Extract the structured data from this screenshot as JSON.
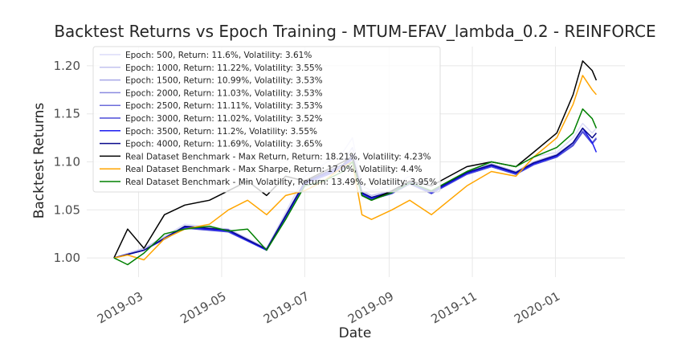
{
  "chart_data": {
    "type": "line",
    "title": "Backtest Returns vs Epoch Training - MTUM-EFAV_lambda_0.2 - REINFORCE",
    "xlabel": "Date",
    "ylabel": "Backtest Returns",
    "xlim": [
      "2019-01-22",
      "2020-02-21"
    ],
    "ylim": [
      0.98,
      1.22
    ],
    "x_ticks": [
      "2019-03",
      "2019-05",
      "2019-07",
      "2019-09",
      "2019-11",
      "2020-01"
    ],
    "y_ticks": [
      1.0,
      1.05,
      1.1,
      1.15,
      1.2
    ],
    "y_tick_labels": [
      "1.00",
      "1.05",
      "1.10",
      "1.15",
      "1.20"
    ],
    "grid": true,
    "legend_position": "upper-left",
    "series": [
      {
        "name": "Epoch: 500, Return: 11.6%, Volatility: 3.61%",
        "color": "#dcdcf8",
        "x": [
          "2019-02-11",
          "2019-03-05",
          "2019-04-04",
          "2019-05-06",
          "2019-06-03",
          "2019-07-01",
          "2019-07-29",
          "2019-08-05",
          "2019-08-12",
          "2019-08-19",
          "2019-09-03",
          "2019-09-16",
          "2019-10-02",
          "2019-10-15",
          "2019-10-28",
          "2019-11-15",
          "2019-12-03",
          "2019-12-16",
          "2020-01-02",
          "2020-01-14",
          "2020-01-21",
          "2020-01-28",
          "2020-01-31"
        ],
        "values": [
          1.0,
          1.01,
          1.035,
          1.03,
          1.01,
          1.085,
          1.11,
          1.125,
          1.075,
          1.07,
          1.075,
          1.085,
          1.075,
          1.085,
          1.095,
          1.1,
          1.095,
          1.105,
          1.11,
          1.125,
          1.14,
          1.13,
          1.135
        ]
      },
      {
        "name": "Epoch: 1000, Return: 11.22%, Volatility: 3.55%",
        "color": "#c3c3ef",
        "x": [
          "2019-02-11",
          "2019-03-05",
          "2019-04-04",
          "2019-05-06",
          "2019-06-03",
          "2019-07-01",
          "2019-07-29",
          "2019-08-05",
          "2019-08-12",
          "2019-08-19",
          "2019-09-03",
          "2019-09-16",
          "2019-10-02",
          "2019-10-15",
          "2019-10-28",
          "2019-11-15",
          "2019-12-03",
          "2019-12-16",
          "2020-01-02",
          "2020-01-14",
          "2020-01-21",
          "2020-01-28",
          "2020-01-31"
        ],
        "values": [
          1.0,
          1.01,
          1.033,
          1.03,
          1.01,
          1.08,
          1.1,
          1.115,
          1.07,
          1.065,
          1.07,
          1.08,
          1.07,
          1.08,
          1.09,
          1.098,
          1.09,
          1.1,
          1.108,
          1.12,
          1.135,
          1.125,
          1.13
        ]
      },
      {
        "name": "Epoch: 1500, Return: 10.99%, Volatility: 3.53%",
        "color": "#a6a6e6",
        "x": [
          "2019-02-11",
          "2019-03-05",
          "2019-04-04",
          "2019-05-06",
          "2019-06-03",
          "2019-07-01",
          "2019-07-29",
          "2019-08-05",
          "2019-08-12",
          "2019-08-19",
          "2019-09-03",
          "2019-09-16",
          "2019-10-02",
          "2019-10-15",
          "2019-10-28",
          "2019-11-15",
          "2019-12-03",
          "2019-12-16",
          "2020-01-02",
          "2020-01-14",
          "2020-01-21",
          "2020-01-28",
          "2020-01-31"
        ],
        "values": [
          1.0,
          1.008,
          1.032,
          1.028,
          1.008,
          1.078,
          1.095,
          1.105,
          1.068,
          1.062,
          1.068,
          1.078,
          1.068,
          1.078,
          1.088,
          1.096,
          1.088,
          1.098,
          1.106,
          1.118,
          1.132,
          1.12,
          1.125
        ]
      },
      {
        "name": "Epoch: 2000, Return: 11.03%, Volatility: 3.53%",
        "color": "#8a8adf",
        "x": [
          "2019-02-11",
          "2019-03-05",
          "2019-04-04",
          "2019-05-06",
          "2019-06-03",
          "2019-07-01",
          "2019-07-29",
          "2019-08-05",
          "2019-08-12",
          "2019-08-19",
          "2019-09-03",
          "2019-09-16",
          "2019-10-02",
          "2019-10-15",
          "2019-10-28",
          "2019-11-15",
          "2019-12-03",
          "2019-12-16",
          "2020-01-02",
          "2020-01-14",
          "2020-01-21",
          "2020-01-28",
          "2020-01-31"
        ],
        "values": [
          1.0,
          1.008,
          1.031,
          1.028,
          1.008,
          1.077,
          1.093,
          1.103,
          1.066,
          1.061,
          1.067,
          1.077,
          1.067,
          1.077,
          1.087,
          1.095,
          1.087,
          1.097,
          1.105,
          1.117,
          1.131,
          1.119,
          1.124
        ]
      },
      {
        "name": "Epoch: 2500, Return: 11.11%, Volatility: 3.53%",
        "color": "#6c6cdb",
        "x": [
          "2019-02-11",
          "2019-03-05",
          "2019-04-04",
          "2019-05-06",
          "2019-06-03",
          "2019-07-01",
          "2019-07-29",
          "2019-08-05",
          "2019-08-12",
          "2019-08-19",
          "2019-09-03",
          "2019-09-16",
          "2019-10-02",
          "2019-10-15",
          "2019-10-28",
          "2019-11-15",
          "2019-12-03",
          "2019-12-16",
          "2020-01-02",
          "2020-01-14",
          "2020-01-21",
          "2020-01-28",
          "2020-01-31"
        ],
        "values": [
          1.0,
          1.008,
          1.031,
          1.028,
          1.008,
          1.077,
          1.094,
          1.104,
          1.066,
          1.061,
          1.067,
          1.077,
          1.067,
          1.077,
          1.087,
          1.095,
          1.087,
          1.097,
          1.105,
          1.118,
          1.132,
          1.12,
          1.125
        ]
      },
      {
        "name": "Epoch: 3000, Return: 11.02%, Volatility: 3.52%",
        "color": "#4d4dd9",
        "x": [
          "2019-02-11",
          "2019-03-05",
          "2019-04-04",
          "2019-05-06",
          "2019-06-03",
          "2019-07-01",
          "2019-07-29",
          "2019-08-05",
          "2019-08-12",
          "2019-08-19",
          "2019-09-03",
          "2019-09-16",
          "2019-10-02",
          "2019-10-15",
          "2019-10-28",
          "2019-11-15",
          "2019-12-03",
          "2019-12-16",
          "2020-01-02",
          "2020-01-14",
          "2020-01-21",
          "2020-01-28",
          "2020-01-31"
        ],
        "values": [
          1.0,
          1.008,
          1.031,
          1.027,
          1.008,
          1.077,
          1.093,
          1.103,
          1.066,
          1.061,
          1.067,
          1.077,
          1.067,
          1.077,
          1.087,
          1.095,
          1.087,
          1.097,
          1.105,
          1.117,
          1.131,
          1.119,
          1.124
        ]
      },
      {
        "name": "Epoch: 3500, Return: 11.2%, Volatility: 3.55%",
        "color": "#1c1cf0",
        "x": [
          "2019-02-11",
          "2019-03-05",
          "2019-04-04",
          "2019-05-06",
          "2019-06-03",
          "2019-07-01",
          "2019-07-29",
          "2019-08-05",
          "2019-08-12",
          "2019-08-19",
          "2019-09-03",
          "2019-09-16",
          "2019-10-02",
          "2019-10-15",
          "2019-10-28",
          "2019-11-15",
          "2019-12-03",
          "2019-12-16",
          "2020-01-02",
          "2020-01-14",
          "2020-01-21",
          "2020-01-28",
          "2020-01-31"
        ],
        "values": [
          1.0,
          1.008,
          1.032,
          1.028,
          1.008,
          1.078,
          1.095,
          1.105,
          1.067,
          1.062,
          1.068,
          1.078,
          1.068,
          1.078,
          1.088,
          1.096,
          1.088,
          1.098,
          1.106,
          1.12,
          1.135,
          1.12,
          1.11
        ]
      },
      {
        "name": "Epoch: 4000, Return: 11.69%, Volatility: 3.65%",
        "color": "#0a0a8c",
        "x": [
          "2019-02-11",
          "2019-03-05",
          "2019-04-04",
          "2019-05-06",
          "2019-06-03",
          "2019-07-01",
          "2019-07-29",
          "2019-08-05",
          "2019-08-12",
          "2019-08-19",
          "2019-09-03",
          "2019-09-16",
          "2019-10-02",
          "2019-10-15",
          "2019-10-28",
          "2019-11-15",
          "2019-12-03",
          "2019-12-16",
          "2020-01-02",
          "2020-01-14",
          "2020-01-21",
          "2020-01-28",
          "2020-01-31"
        ],
        "values": [
          1.0,
          1.008,
          1.033,
          1.029,
          1.009,
          1.079,
          1.097,
          1.107,
          1.068,
          1.063,
          1.069,
          1.079,
          1.069,
          1.079,
          1.089,
          1.097,
          1.089,
          1.099,
          1.107,
          1.12,
          1.135,
          1.125,
          1.13
        ]
      },
      {
        "name": "Real Dataset Benchmark - Max Return, Return: 18.21%, Volatility: 4.23%",
        "color": "#000000",
        "x": [
          "2019-02-11",
          "2019-02-21",
          "2019-03-05",
          "2019-03-20",
          "2019-04-04",
          "2019-04-22",
          "2019-05-06",
          "2019-05-20",
          "2019-06-03",
          "2019-06-17",
          "2019-07-01",
          "2019-07-15",
          "2019-07-29",
          "2019-08-05",
          "2019-08-12",
          "2019-08-19",
          "2019-09-03",
          "2019-09-16",
          "2019-10-02",
          "2019-10-15",
          "2019-10-28",
          "2019-11-15",
          "2019-12-03",
          "2019-12-16",
          "2020-01-02",
          "2020-01-14",
          "2020-01-21",
          "2020-01-28",
          "2020-01-31"
        ],
        "values": [
          1.0,
          1.03,
          1.01,
          1.045,
          1.055,
          1.06,
          1.07,
          1.08,
          1.065,
          1.085,
          1.08,
          1.09,
          1.1,
          1.105,
          1.065,
          1.06,
          1.07,
          1.08,
          1.075,
          1.085,
          1.095,
          1.1,
          1.095,
          1.11,
          1.13,
          1.17,
          1.205,
          1.195,
          1.185
        ]
      },
      {
        "name": "Real Dataset Benchmark - Max Sharpe, Return: 17.0%, Volatility: 4.4%",
        "color": "#ffa500",
        "x": [
          "2019-02-11",
          "2019-02-21",
          "2019-03-05",
          "2019-03-20",
          "2019-04-04",
          "2019-04-22",
          "2019-05-06",
          "2019-05-20",
          "2019-06-03",
          "2019-06-17",
          "2019-07-01",
          "2019-07-15",
          "2019-07-29",
          "2019-08-05",
          "2019-08-12",
          "2019-08-19",
          "2019-09-03",
          "2019-09-16",
          "2019-10-02",
          "2019-10-15",
          "2019-10-28",
          "2019-11-15",
          "2019-12-03",
          "2019-12-16",
          "2020-01-02",
          "2020-01-14",
          "2020-01-21",
          "2020-01-28",
          "2020-01-31"
        ],
        "values": [
          1.0,
          1.003,
          0.998,
          1.02,
          1.03,
          1.035,
          1.05,
          1.06,
          1.045,
          1.065,
          1.07,
          1.08,
          1.095,
          1.1,
          1.045,
          1.04,
          1.05,
          1.06,
          1.045,
          1.06,
          1.075,
          1.09,
          1.085,
          1.105,
          1.125,
          1.16,
          1.19,
          1.175,
          1.17
        ]
      },
      {
        "name": "Real Dataset Benchmark - Min Volatility, Return: 13.49%, Volatility: 3.95%",
        "color": "#008000",
        "x": [
          "2019-02-11",
          "2019-02-21",
          "2019-03-05",
          "2019-03-20",
          "2019-04-04",
          "2019-04-22",
          "2019-05-06",
          "2019-05-20",
          "2019-06-03",
          "2019-06-17",
          "2019-07-01",
          "2019-07-15",
          "2019-07-29",
          "2019-08-05",
          "2019-08-12",
          "2019-08-19",
          "2019-09-03",
          "2019-09-16",
          "2019-10-02",
          "2019-10-15",
          "2019-10-28",
          "2019-11-15",
          "2019-12-03",
          "2019-12-16",
          "2020-01-02",
          "2020-01-14",
          "2020-01-21",
          "2020-01-28",
          "2020-01-31"
        ],
        "values": [
          1.0,
          0.993,
          1.005,
          1.025,
          1.03,
          1.033,
          1.028,
          1.03,
          1.008,
          1.04,
          1.075,
          1.08,
          1.09,
          1.1,
          1.065,
          1.06,
          1.068,
          1.078,
          1.07,
          1.08,
          1.09,
          1.1,
          1.095,
          1.105,
          1.115,
          1.13,
          1.155,
          1.145,
          1.135
        ]
      }
    ]
  }
}
